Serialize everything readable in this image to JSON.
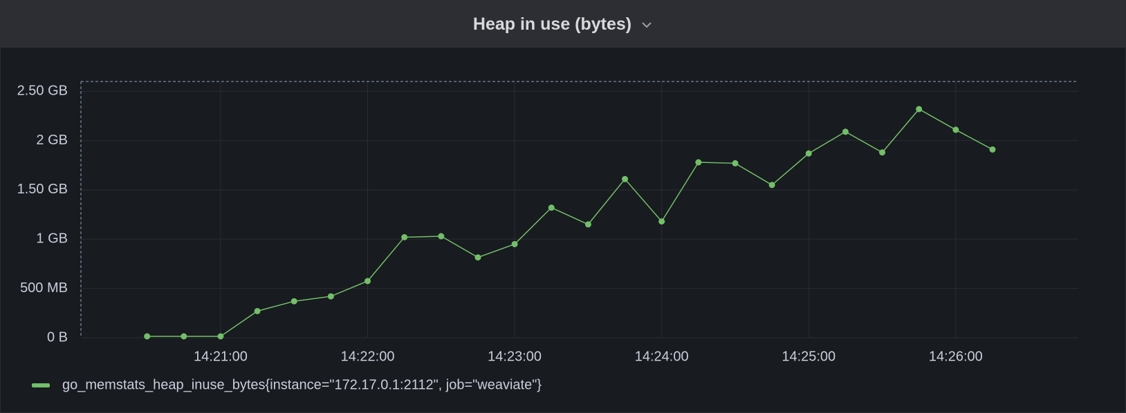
{
  "chart_data": {
    "type": "line",
    "title": "Heap in use (bytes)",
    "x": [
      "14:20:30",
      "14:20:45",
      "14:21:00",
      "14:21:15",
      "14:21:30",
      "14:21:45",
      "14:22:00",
      "14:22:15",
      "14:22:30",
      "14:22:45",
      "14:23:00",
      "14:23:15",
      "14:23:30",
      "14:23:45",
      "14:24:00",
      "14:24:15",
      "14:24:30",
      "14:24:45",
      "14:25:00",
      "14:25:15",
      "14:25:30",
      "14:25:45",
      "14:26:00",
      "14:26:15"
    ],
    "series": [
      {
        "name": "go_memstats_heap_inuse_bytes{instance=\"172.17.0.1:2112\", job=\"weaviate\"}",
        "color": "#73bf69",
        "values": [
          14000000,
          14000000,
          14000000,
          270000000,
          370000000,
          420000000,
          575000000,
          1020000000,
          1030000000,
          815000000,
          950000000,
          1320000000,
          1150000000,
          1610000000,
          1180000000,
          1780000000,
          1770000000,
          1550000000,
          1870000000,
          2090000000,
          1880000000,
          2320000000,
          2110000000,
          1910000000
        ]
      }
    ],
    "xlim": [
      "14:20:03",
      "14:26:50"
    ],
    "xticks": [
      "14:21:00",
      "14:22:00",
      "14:23:00",
      "14:24:00",
      "14:25:00",
      "14:26:00"
    ],
    "ylim": [
      0,
      2600000000
    ],
    "yticks": [
      {
        "value": 0,
        "label": "0 B"
      },
      {
        "value": 500000000,
        "label": "500 MB"
      },
      {
        "value": 1000000000,
        "label": "1 GB"
      },
      {
        "value": 1500000000,
        "label": "1.50 GB"
      },
      {
        "value": 2000000000,
        "label": "2 GB"
      },
      {
        "value": 2500000000,
        "label": "2.50 GB"
      }
    ],
    "grid": true,
    "legend": "bottom"
  }
}
